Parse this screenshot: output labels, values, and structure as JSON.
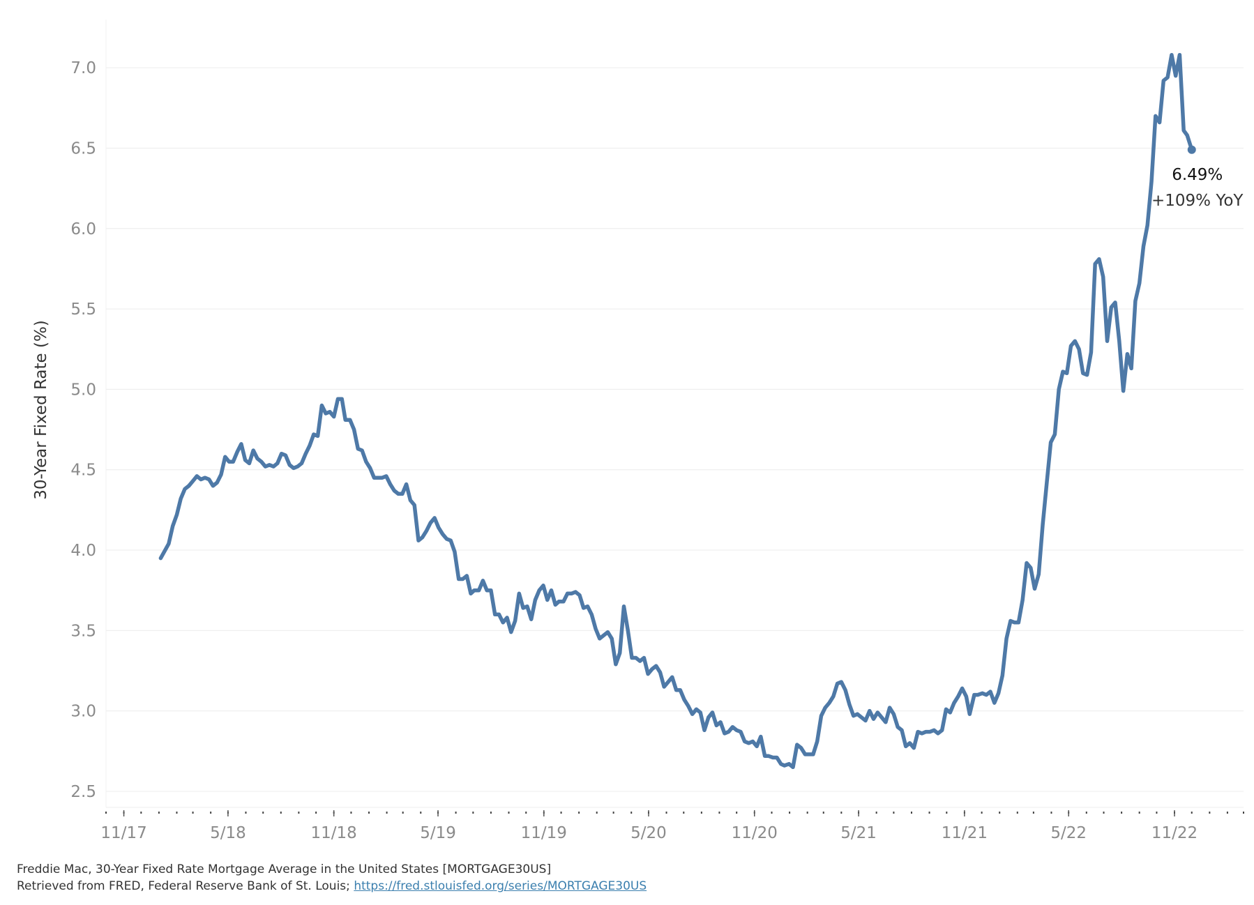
{
  "chart_data": {
    "type": "line",
    "ylabel": "30-Year Fixed Rate (%)",
    "ylim": [
      2.4,
      7.3
    ],
    "yticks": [
      2.5,
      3.0,
      3.5,
      4.0,
      4.5,
      5.0,
      5.5,
      6.0,
      6.5,
      7.0
    ],
    "ytick_labels": [
      "2.5",
      "3.0",
      "3.5",
      "4.0",
      "4.5",
      "5.0",
      "5.5",
      "6.0",
      "6.5",
      "7.0"
    ],
    "xlim": [
      "2017-10-01",
      "2023-03-01"
    ],
    "xticks": [
      "2017-11-01",
      "2018-05-01",
      "2018-11-01",
      "2019-05-01",
      "2019-11-01",
      "2020-05-01",
      "2020-11-01",
      "2021-05-01",
      "2021-11-01",
      "2022-05-01",
      "2022-11-01"
    ],
    "xtick_labels": [
      "11/17",
      "5/18",
      "11/18",
      "5/19",
      "11/19",
      "5/20",
      "11/20",
      "5/21",
      "11/21",
      "5/22",
      "11/22"
    ],
    "grid": "horizontal",
    "color": "#4e79a7",
    "series": [
      {
        "points": [
          [
            "2018-01-04",
            3.95
          ],
          [
            "2018-01-18",
            4.04
          ],
          [
            "2018-01-25",
            4.15
          ],
          [
            "2018-02-01",
            4.22
          ],
          [
            "2018-02-08",
            4.32
          ],
          [
            "2018-02-15",
            4.38
          ],
          [
            "2018-02-22",
            4.4
          ],
          [
            "2018-03-01",
            4.43
          ],
          [
            "2018-03-08",
            4.46
          ],
          [
            "2018-03-15",
            4.44
          ],
          [
            "2018-03-22",
            4.45
          ],
          [
            "2018-03-29",
            4.44
          ],
          [
            "2018-04-05",
            4.4
          ],
          [
            "2018-04-12",
            4.42
          ],
          [
            "2018-04-19",
            4.47
          ],
          [
            "2018-04-26",
            4.58
          ],
          [
            "2018-05-03",
            4.55
          ],
          [
            "2018-05-10",
            4.55
          ],
          [
            "2018-05-17",
            4.61
          ],
          [
            "2018-05-24",
            4.66
          ],
          [
            "2018-05-31",
            4.56
          ],
          [
            "2018-06-07",
            4.54
          ],
          [
            "2018-06-14",
            4.62
          ],
          [
            "2018-06-21",
            4.57
          ],
          [
            "2018-06-28",
            4.55
          ],
          [
            "2018-07-05",
            4.52
          ],
          [
            "2018-07-12",
            4.53
          ],
          [
            "2018-07-19",
            4.52
          ],
          [
            "2018-07-26",
            4.54
          ],
          [
            "2018-08-02",
            4.6
          ],
          [
            "2018-08-09",
            4.59
          ],
          [
            "2018-08-16",
            4.53
          ],
          [
            "2018-08-23",
            4.51
          ],
          [
            "2018-08-30",
            4.52
          ],
          [
            "2018-09-06",
            4.54
          ],
          [
            "2018-09-13",
            4.6
          ],
          [
            "2018-09-20",
            4.65
          ],
          [
            "2018-09-27",
            4.72
          ],
          [
            "2018-10-04",
            4.71
          ],
          [
            "2018-10-11",
            4.9
          ],
          [
            "2018-10-18",
            4.85
          ],
          [
            "2018-10-25",
            4.86
          ],
          [
            "2018-11-01",
            4.83
          ],
          [
            "2018-11-08",
            4.94
          ],
          [
            "2018-11-15",
            4.94
          ],
          [
            "2018-11-21",
            4.81
          ],
          [
            "2018-11-29",
            4.81
          ],
          [
            "2018-12-06",
            4.75
          ],
          [
            "2018-12-13",
            4.63
          ],
          [
            "2018-12-20",
            4.62
          ],
          [
            "2018-12-27",
            4.55
          ],
          [
            "2019-01-03",
            4.51
          ],
          [
            "2019-01-10",
            4.45
          ],
          [
            "2019-01-17",
            4.45
          ],
          [
            "2019-01-24",
            4.45
          ],
          [
            "2019-01-31",
            4.46
          ],
          [
            "2019-02-07",
            4.41
          ],
          [
            "2019-02-14",
            4.37
          ],
          [
            "2019-02-21",
            4.35
          ],
          [
            "2019-02-28",
            4.35
          ],
          [
            "2019-03-07",
            4.41
          ],
          [
            "2019-03-14",
            4.31
          ],
          [
            "2019-03-21",
            4.28
          ],
          [
            "2019-03-28",
            4.06
          ],
          [
            "2019-04-04",
            4.08
          ],
          [
            "2019-04-11",
            4.12
          ],
          [
            "2019-04-18",
            4.17
          ],
          [
            "2019-04-25",
            4.2
          ],
          [
            "2019-05-02",
            4.14
          ],
          [
            "2019-05-09",
            4.1
          ],
          [
            "2019-05-16",
            4.07
          ],
          [
            "2019-05-23",
            4.06
          ],
          [
            "2019-05-30",
            3.99
          ],
          [
            "2019-06-06",
            3.82
          ],
          [
            "2019-06-13",
            3.82
          ],
          [
            "2019-06-20",
            3.84
          ],
          [
            "2019-06-27",
            3.73
          ],
          [
            "2019-07-03",
            3.75
          ],
          [
            "2019-07-11",
            3.75
          ],
          [
            "2019-07-18",
            3.81
          ],
          [
            "2019-07-25",
            3.75
          ],
          [
            "2019-08-01",
            3.75
          ],
          [
            "2019-08-08",
            3.6
          ],
          [
            "2019-08-15",
            3.6
          ],
          [
            "2019-08-22",
            3.55
          ],
          [
            "2019-08-29",
            3.58
          ],
          [
            "2019-09-05",
            3.49
          ],
          [
            "2019-09-12",
            3.56
          ],
          [
            "2019-09-19",
            3.73
          ],
          [
            "2019-09-26",
            3.64
          ],
          [
            "2019-10-03",
            3.65
          ],
          [
            "2019-10-10",
            3.57
          ],
          [
            "2019-10-17",
            3.69
          ],
          [
            "2019-10-24",
            3.75
          ],
          [
            "2019-10-31",
            3.78
          ],
          [
            "2019-11-07",
            3.69
          ],
          [
            "2019-11-14",
            3.75
          ],
          [
            "2019-11-21",
            3.66
          ],
          [
            "2019-11-27",
            3.68
          ],
          [
            "2019-12-05",
            3.68
          ],
          [
            "2019-12-12",
            3.73
          ],
          [
            "2019-12-19",
            3.73
          ],
          [
            "2019-12-26",
            3.74
          ],
          [
            "2020-01-02",
            3.72
          ],
          [
            "2020-01-09",
            3.64
          ],
          [
            "2020-01-16",
            3.65
          ],
          [
            "2020-01-23",
            3.6
          ],
          [
            "2020-01-30",
            3.51
          ],
          [
            "2020-02-06",
            3.45
          ],
          [
            "2020-02-13",
            3.47
          ],
          [
            "2020-02-20",
            3.49
          ],
          [
            "2020-02-27",
            3.45
          ],
          [
            "2020-03-05",
            3.29
          ],
          [
            "2020-03-12",
            3.36
          ],
          [
            "2020-03-19",
            3.65
          ],
          [
            "2020-03-26",
            3.5
          ],
          [
            "2020-04-02",
            3.33
          ],
          [
            "2020-04-09",
            3.33
          ],
          [
            "2020-04-16",
            3.31
          ],
          [
            "2020-04-23",
            3.33
          ],
          [
            "2020-04-30",
            3.23
          ],
          [
            "2020-05-07",
            3.26
          ],
          [
            "2020-05-14",
            3.28
          ],
          [
            "2020-05-21",
            3.24
          ],
          [
            "2020-05-28",
            3.15
          ],
          [
            "2020-06-04",
            3.18
          ],
          [
            "2020-06-11",
            3.21
          ],
          [
            "2020-06-18",
            3.13
          ],
          [
            "2020-06-25",
            3.13
          ],
          [
            "2020-07-02",
            3.07
          ],
          [
            "2020-07-09",
            3.03
          ],
          [
            "2020-07-16",
            2.98
          ],
          [
            "2020-07-23",
            3.01
          ],
          [
            "2020-07-30",
            2.99
          ],
          [
            "2020-08-06",
            2.88
          ],
          [
            "2020-08-13",
            2.96
          ],
          [
            "2020-08-20",
            2.99
          ],
          [
            "2020-08-27",
            2.91
          ],
          [
            "2020-09-03",
            2.93
          ],
          [
            "2020-09-10",
            2.86
          ],
          [
            "2020-09-17",
            2.87
          ],
          [
            "2020-09-24",
            2.9
          ],
          [
            "2020-10-01",
            2.88
          ],
          [
            "2020-10-08",
            2.87
          ],
          [
            "2020-10-15",
            2.81
          ],
          [
            "2020-10-22",
            2.8
          ],
          [
            "2020-10-29",
            2.81
          ],
          [
            "2020-11-05",
            2.78
          ],
          [
            "2020-11-12",
            2.84
          ],
          [
            "2020-11-19",
            2.72
          ],
          [
            "2020-11-25",
            2.72
          ],
          [
            "2020-12-03",
            2.71
          ],
          [
            "2020-12-10",
            2.71
          ],
          [
            "2020-12-17",
            2.67
          ],
          [
            "2020-12-23",
            2.66
          ],
          [
            "2020-12-31",
            2.67
          ],
          [
            "2021-01-07",
            2.65
          ],
          [
            "2021-01-14",
            2.79
          ],
          [
            "2021-01-21",
            2.77
          ],
          [
            "2021-01-28",
            2.73
          ],
          [
            "2021-02-04",
            2.73
          ],
          [
            "2021-02-11",
            2.73
          ],
          [
            "2021-02-18",
            2.81
          ],
          [
            "2021-02-25",
            2.97
          ],
          [
            "2021-03-04",
            3.02
          ],
          [
            "2021-03-11",
            3.05
          ],
          [
            "2021-03-18",
            3.09
          ],
          [
            "2021-03-25",
            3.17
          ],
          [
            "2021-04-01",
            3.18
          ],
          [
            "2021-04-08",
            3.13
          ],
          [
            "2021-04-15",
            3.04
          ],
          [
            "2021-04-22",
            2.97
          ],
          [
            "2021-04-29",
            2.98
          ],
          [
            "2021-05-06",
            2.96
          ],
          [
            "2021-05-13",
            2.94
          ],
          [
            "2021-05-20",
            3.0
          ],
          [
            "2021-05-27",
            2.95
          ],
          [
            "2021-06-03",
            2.99
          ],
          [
            "2021-06-10",
            2.96
          ],
          [
            "2021-06-17",
            2.93
          ],
          [
            "2021-06-24",
            3.02
          ],
          [
            "2021-07-01",
            2.98
          ],
          [
            "2021-07-08",
            2.9
          ],
          [
            "2021-07-15",
            2.88
          ],
          [
            "2021-07-22",
            2.78
          ],
          [
            "2021-07-29",
            2.8
          ],
          [
            "2021-08-05",
            2.77
          ],
          [
            "2021-08-12",
            2.87
          ],
          [
            "2021-08-19",
            2.86
          ],
          [
            "2021-08-26",
            2.87
          ],
          [
            "2021-09-02",
            2.87
          ],
          [
            "2021-09-09",
            2.88
          ],
          [
            "2021-09-16",
            2.86
          ],
          [
            "2021-09-23",
            2.88
          ],
          [
            "2021-09-30",
            3.01
          ],
          [
            "2021-10-07",
            2.99
          ],
          [
            "2021-10-14",
            3.05
          ],
          [
            "2021-10-21",
            3.09
          ],
          [
            "2021-10-28",
            3.14
          ],
          [
            "2021-11-04",
            3.09
          ],
          [
            "2021-11-10",
            2.98
          ],
          [
            "2021-11-18",
            3.1
          ],
          [
            "2021-11-24",
            3.1
          ],
          [
            "2021-12-02",
            3.11
          ],
          [
            "2021-12-09",
            3.1
          ],
          [
            "2021-12-16",
            3.12
          ],
          [
            "2021-12-23",
            3.05
          ],
          [
            "2021-12-30",
            3.11
          ],
          [
            "2022-01-06",
            3.22
          ],
          [
            "2022-01-13",
            3.45
          ],
          [
            "2022-01-20",
            3.56
          ],
          [
            "2022-01-27",
            3.55
          ],
          [
            "2022-02-03",
            3.55
          ],
          [
            "2022-02-10",
            3.69
          ],
          [
            "2022-02-17",
            3.92
          ],
          [
            "2022-02-24",
            3.89
          ],
          [
            "2022-03-03",
            3.76
          ],
          [
            "2022-03-10",
            3.85
          ],
          [
            "2022-03-17",
            4.16
          ],
          [
            "2022-03-24",
            4.42
          ],
          [
            "2022-03-31",
            4.67
          ],
          [
            "2022-04-07",
            4.72
          ],
          [
            "2022-04-14",
            5.0
          ],
          [
            "2022-04-21",
            5.11
          ],
          [
            "2022-04-28",
            5.1
          ],
          [
            "2022-05-05",
            5.27
          ],
          [
            "2022-05-12",
            5.3
          ],
          [
            "2022-05-19",
            5.25
          ],
          [
            "2022-05-26",
            5.1
          ],
          [
            "2022-06-02",
            5.09
          ],
          [
            "2022-06-09",
            5.23
          ],
          [
            "2022-06-16",
            5.78
          ],
          [
            "2022-06-23",
            5.81
          ],
          [
            "2022-06-30",
            5.7
          ],
          [
            "2022-07-07",
            5.3
          ],
          [
            "2022-07-14",
            5.51
          ],
          [
            "2022-07-21",
            5.54
          ],
          [
            "2022-07-28",
            5.3
          ],
          [
            "2022-08-04",
            4.99
          ],
          [
            "2022-08-11",
            5.22
          ],
          [
            "2022-08-18",
            5.13
          ],
          [
            "2022-08-25",
            5.55
          ],
          [
            "2022-09-01",
            5.66
          ],
          [
            "2022-09-08",
            5.89
          ],
          [
            "2022-09-15",
            6.02
          ],
          [
            "2022-09-22",
            6.29
          ],
          [
            "2022-09-29",
            6.7
          ],
          [
            "2022-10-06",
            6.66
          ],
          [
            "2022-10-13",
            6.92
          ],
          [
            "2022-10-20",
            6.94
          ],
          [
            "2022-10-27",
            7.08
          ],
          [
            "2022-11-03",
            6.95
          ],
          [
            "2022-11-10",
            7.08
          ],
          [
            "2022-11-17",
            6.61
          ],
          [
            "2022-11-23",
            6.58
          ],
          [
            "2022-12-01",
            6.49
          ]
        ]
      }
    ],
    "annotation": {
      "value_label": "6.49%",
      "change_label": "+109% YoY"
    }
  },
  "source": {
    "line1": "Freddie Mac, 30-Year Fixed Rate Mortgage Average in the United States [MORTGAGE30US]",
    "line2_prefix": "Retrieved from FRED, Federal Reserve Bank of St. Louis;",
    "link": "https://fred.stlouisfed.org/series/MORTGAGE30US"
  }
}
